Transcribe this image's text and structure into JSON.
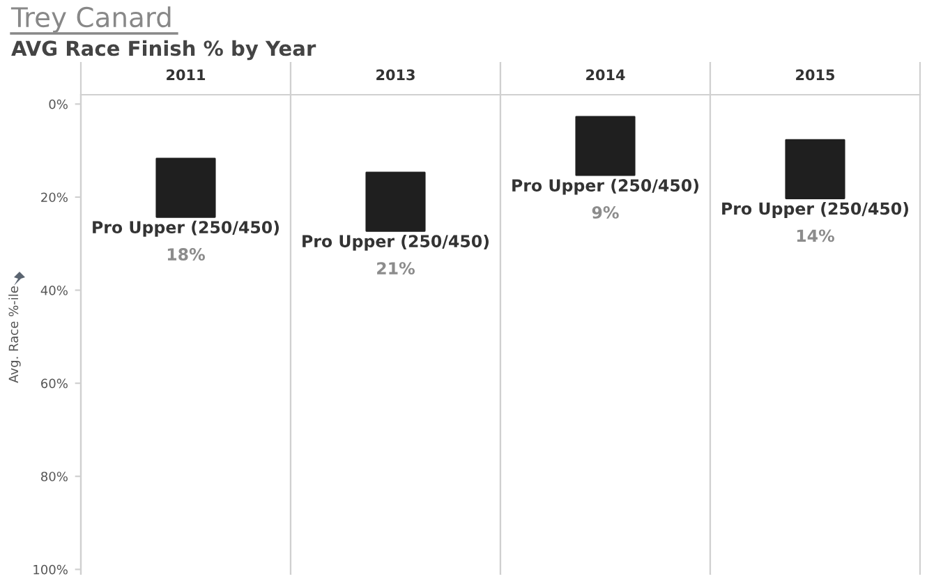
{
  "chart_data": {
    "type": "scatter",
    "title": "Trey Canard",
    "subtitle": "AVG Race Finish % by Year",
    "ylabel": "Avg. Race %-ile",
    "categories": [
      "2011",
      "2013",
      "2014",
      "2015"
    ],
    "values": [
      18,
      21,
      9,
      14
    ],
    "value_labels": [
      "18%",
      "21%",
      "9%",
      "14%"
    ],
    "color": "#1f1f1f",
    "marker": "square",
    "annotations": [
      {
        "text": "Pro Upper (250/450)",
        "x": "2011",
        "y": 18
      },
      {
        "text": "Pro Upper (250/450)",
        "x": "2013",
        "y": 21
      },
      {
        "text": "Pro Upper (250/450)",
        "x": "2014",
        "y": 9
      },
      {
        "text": "Pro Upper (250/450)",
        "x": "2015",
        "y": 14
      }
    ],
    "ylim": [
      101,
      -2
    ],
    "yticks": [
      {
        "value": 0,
        "label": "0%"
      },
      {
        "value": 20,
        "label": "20%"
      },
      {
        "value": 40,
        "label": "40%"
      },
      {
        "value": 60,
        "label": "60%"
      },
      {
        "value": 80,
        "label": "80%"
      },
      {
        "value": 100,
        "label": "100%"
      }
    ]
  }
}
